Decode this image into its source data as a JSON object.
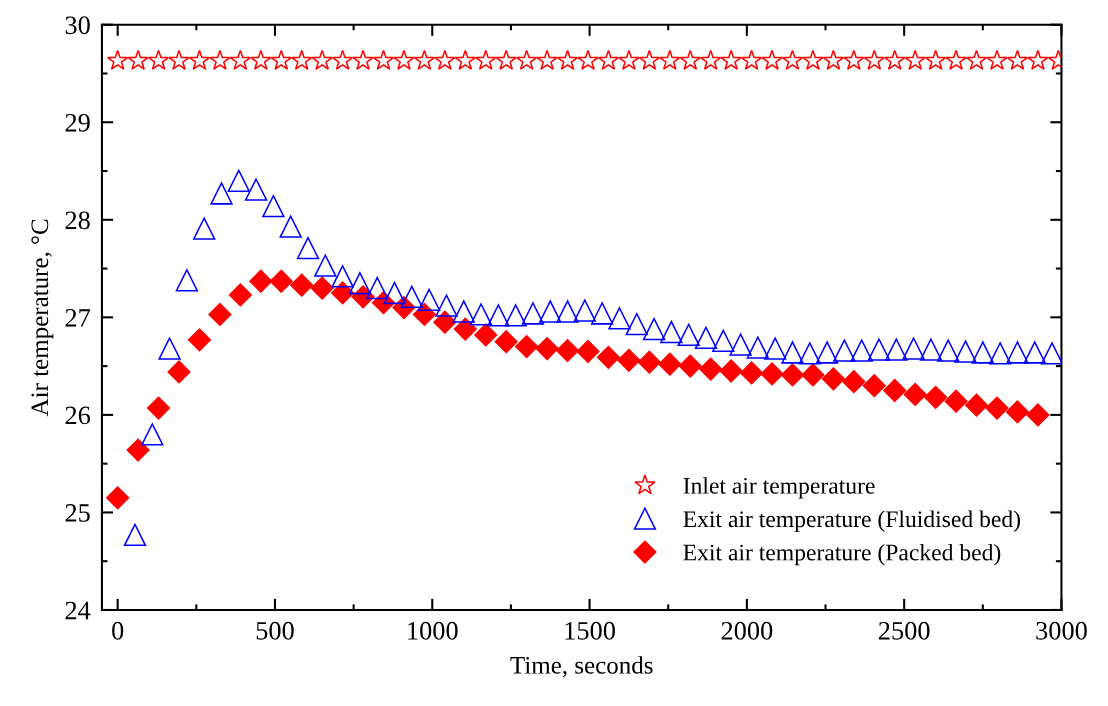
{
  "chart_data": {
    "type": "scatter",
    "xlabel": "Time, seconds",
    "ylabel": "Air temperature, °C",
    "xlim": [
      -50,
      3000
    ],
    "xticks": [
      0,
      500,
      1000,
      1500,
      2000,
      2500,
      3000
    ],
    "ylim": [
      24,
      30
    ],
    "yticks": [
      24,
      25,
      26,
      27,
      28,
      29,
      30
    ],
    "grid": false,
    "legend": "bottom right",
    "series": [
      {
        "name": "Inlet air temperature",
        "color": "#ff0000",
        "marker": "star",
        "x": [
          0,
          65,
          130,
          195,
          260,
          325,
          390,
          455,
          520,
          585,
          650,
          715,
          780,
          845,
          910,
          975,
          1040,
          1105,
          1170,
          1235,
          1300,
          1365,
          1430,
          1495,
          1560,
          1625,
          1690,
          1755,
          1820,
          1885,
          1950,
          2015,
          2080,
          2145,
          2210,
          2275,
          2340,
          2405,
          2470,
          2535,
          2600,
          2665,
          2730,
          2795,
          2860,
          2925,
          2990
        ],
        "values": [
          29.63,
          29.63,
          29.63,
          29.63,
          29.63,
          29.63,
          29.63,
          29.63,
          29.63,
          29.63,
          29.63,
          29.63,
          29.63,
          29.63,
          29.63,
          29.63,
          29.63,
          29.63,
          29.63,
          29.63,
          29.63,
          29.63,
          29.63,
          29.63,
          29.63,
          29.63,
          29.63,
          29.63,
          29.63,
          29.63,
          29.63,
          29.63,
          29.63,
          29.63,
          29.63,
          29.63,
          29.63,
          29.63,
          29.63,
          29.63,
          29.63,
          29.63,
          29.63,
          29.63,
          29.63,
          29.63,
          29.63
        ]
      },
      {
        "name": "Exit air temperature (Fluidised bed)",
        "color": "#0000ff",
        "marker": "triangle",
        "x": [
          55,
          110,
          165,
          220,
          275,
          330,
          385,
          440,
          495,
          550,
          605,
          660,
          715,
          770,
          825,
          880,
          935,
          990,
          1045,
          1100,
          1155,
          1210,
          1265,
          1320,
          1375,
          1430,
          1485,
          1540,
          1595,
          1650,
          1705,
          1760,
          1815,
          1870,
          1925,
          1980,
          2035,
          2090,
          2145,
          2200,
          2255,
          2310,
          2365,
          2420,
          2475,
          2530,
          2585,
          2640,
          2695,
          2750,
          2805,
          2860,
          2915,
          2970
        ],
        "values": [
          24.77,
          25.8,
          26.68,
          27.38,
          27.91,
          28.27,
          28.4,
          28.31,
          28.14,
          27.93,
          27.71,
          27.53,
          27.42,
          27.35,
          27.3,
          27.25,
          27.21,
          27.18,
          27.12,
          27.06,
          27.03,
          27.02,
          27.02,
          27.04,
          27.06,
          27.06,
          27.07,
          27.04,
          26.99,
          26.93,
          26.88,
          26.85,
          26.82,
          26.79,
          26.76,
          26.72,
          26.69,
          26.68,
          26.64,
          26.63,
          26.64,
          26.66,
          26.66,
          26.67,
          26.67,
          26.68,
          26.67,
          26.66,
          26.65,
          26.64,
          26.63,
          26.64,
          26.64,
          26.63
        ]
      },
      {
        "name": "Exit air temperature (Packed bed)",
        "color": "#ff0000",
        "marker": "diamond",
        "x": [
          0,
          65,
          130,
          195,
          260,
          325,
          390,
          455,
          520,
          585,
          650,
          715,
          780,
          845,
          910,
          975,
          1040,
          1105,
          1170,
          1235,
          1300,
          1365,
          1430,
          1495,
          1560,
          1625,
          1690,
          1755,
          1820,
          1885,
          1950,
          2015,
          2080,
          2145,
          2210,
          2275,
          2340,
          2405,
          2470,
          2535,
          2600,
          2665,
          2730,
          2795,
          2860,
          2925
        ],
        "values": [
          25.15,
          25.64,
          26.07,
          26.44,
          26.77,
          27.03,
          27.23,
          27.37,
          27.37,
          27.33,
          27.3,
          27.25,
          27.21,
          27.15,
          27.1,
          27.03,
          26.95,
          26.88,
          26.82,
          26.75,
          26.7,
          26.68,
          26.66,
          26.65,
          26.59,
          26.56,
          26.54,
          26.52,
          26.5,
          26.47,
          26.45,
          26.43,
          26.42,
          26.41,
          26.41,
          26.37,
          26.34,
          26.3,
          26.25,
          26.21,
          26.18,
          26.14,
          26.1,
          26.07,
          26.03,
          26.0
        ]
      }
    ]
  }
}
